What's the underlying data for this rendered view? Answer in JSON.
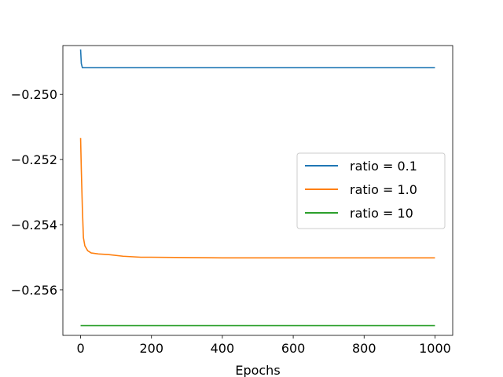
{
  "chart_data": {
    "type": "line",
    "title": "",
    "xlabel": "Epochs",
    "ylabel": "",
    "xlim": [
      -50,
      1050
    ],
    "ylim": [
      -0.2574,
      -0.2485
    ],
    "xticks": [
      0,
      200,
      400,
      600,
      800,
      1000
    ],
    "xtick_labels": [
      "0",
      "200",
      "400",
      "600",
      "800",
      "1000"
    ],
    "yticks": [
      -0.25,
      -0.252,
      -0.254,
      -0.256
    ],
    "ytick_labels": [
      "−0.250",
      "−0.252",
      "−0.254",
      "−0.256"
    ],
    "grid": false,
    "legend_position": "center-right",
    "series": [
      {
        "name": "ratio = 0.1",
        "color": "#1f77b4",
        "x": [
          0,
          2,
          5,
          10,
          50,
          100,
          200,
          300,
          400,
          500,
          600,
          700,
          800,
          900,
          1000
        ],
        "y": [
          -0.24862,
          -0.24905,
          -0.24918,
          -0.24918,
          -0.24918,
          -0.24918,
          -0.24918,
          -0.24918,
          -0.24918,
          -0.24918,
          -0.24918,
          -0.24918,
          -0.24918,
          -0.24918,
          -0.24918
        ]
      },
      {
        "name": "ratio = 1.0",
        "color": "#ff7f0e",
        "x": [
          0,
          2,
          5,
          8,
          12,
          20,
          30,
          50,
          80,
          120,
          170,
          200,
          300,
          400,
          500,
          600,
          700,
          800,
          900,
          1000
        ],
        "y": [
          -0.25134,
          -0.2523,
          -0.2535,
          -0.2544,
          -0.25465,
          -0.2548,
          -0.25487,
          -0.2549,
          -0.25492,
          -0.25497,
          -0.255,
          -0.255,
          -0.25501,
          -0.25502,
          -0.25502,
          -0.25502,
          -0.25502,
          -0.25502,
          -0.25502,
          -0.25502
        ]
      },
      {
        "name": "ratio = 10",
        "color": "#2ca02c",
        "x": [
          0,
          1000
        ],
        "y": [
          -0.2571,
          -0.2571
        ]
      }
    ]
  }
}
